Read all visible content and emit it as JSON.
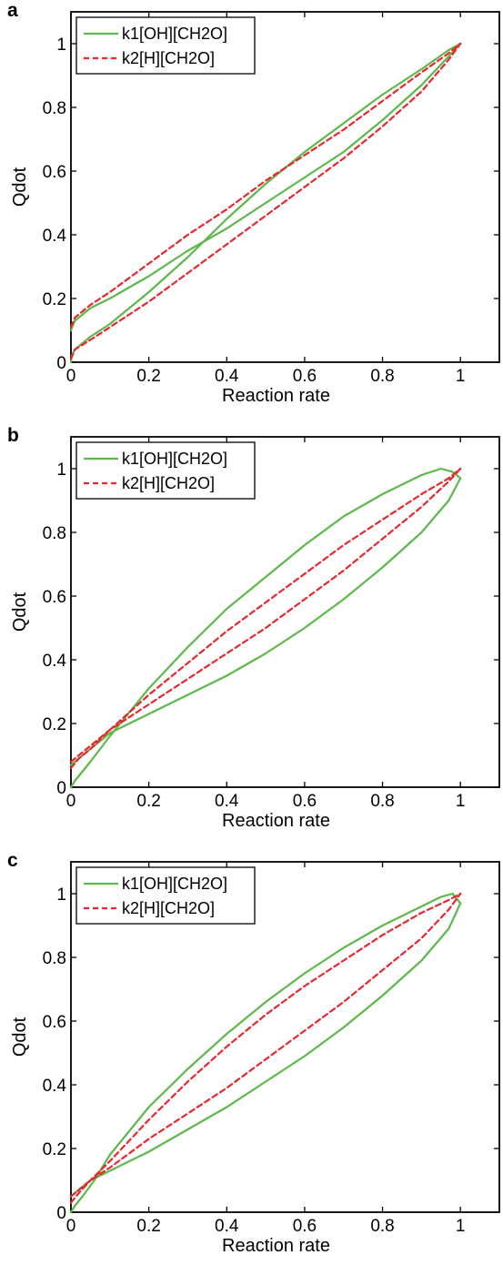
{
  "chart_data": [
    {
      "type": "line",
      "panel_label": "a",
      "xlabel": "Reaction rate",
      "ylabel": "Qdot",
      "xlim": [
        0,
        1.1
      ],
      "ylim": [
        0,
        1.1
      ],
      "xticks": [
        "0",
        "0.2",
        "0.4",
        "0.6",
        "0.8",
        "1"
      ],
      "yticks": [
        "0",
        "0.2",
        "0.4",
        "0.6",
        "0.8",
        "1"
      ],
      "legend_position": "top-left",
      "series": [
        {
          "name": "k1[OH][CH2O]",
          "color": "#5cb84a",
          "dash": "solid",
          "segments": [
            [
              [
                0,
                0
              ],
              [
                0.002,
                0.02
              ],
              [
                0.01,
                0.04
              ],
              [
                0.05,
                0.08
              ],
              [
                0.1,
                0.12
              ],
              [
                0.2,
                0.22
              ],
              [
                0.3,
                0.33
              ],
              [
                0.4,
                0.45
              ],
              [
                0.5,
                0.56
              ],
              [
                0.6,
                0.66
              ],
              [
                0.7,
                0.75
              ],
              [
                0.8,
                0.84
              ],
              [
                0.9,
                0.92
              ],
              [
                0.97,
                0.98
              ],
              [
                1,
                1
              ]
            ],
            [
              [
                0,
                0.1
              ],
              [
                0.01,
                0.13
              ],
              [
                0.05,
                0.17
              ],
              [
                0.1,
                0.2
              ],
              [
                0.2,
                0.27
              ],
              [
                0.3,
                0.35
              ],
              [
                0.4,
                0.42
              ],
              [
                0.5,
                0.5
              ],
              [
                0.6,
                0.58
              ],
              [
                0.7,
                0.66
              ],
              [
                0.8,
                0.76
              ],
              [
                0.9,
                0.87
              ],
              [
                0.97,
                0.96
              ],
              [
                1,
                1
              ]
            ]
          ]
        },
        {
          "name": "k2[H][CH2O]",
          "color": "#e8262b",
          "dash": "dashed",
          "segments": [
            [
              [
                0,
                0.01
              ],
              [
                0.01,
                0.04
              ],
              [
                0.05,
                0.07
              ],
              [
                0.1,
                0.11
              ],
              [
                0.2,
                0.19
              ],
              [
                0.3,
                0.28
              ],
              [
                0.4,
                0.37
              ],
              [
                0.5,
                0.46
              ],
              [
                0.6,
                0.55
              ],
              [
                0.7,
                0.64
              ],
              [
                0.8,
                0.74
              ],
              [
                0.9,
                0.85
              ],
              [
                0.97,
                0.95
              ],
              [
                1,
                1
              ]
            ],
            [
              [
                0,
                0.11
              ],
              [
                0.01,
                0.14
              ],
              [
                0.05,
                0.18
              ],
              [
                0.1,
                0.22
              ],
              [
                0.2,
                0.31
              ],
              [
                0.3,
                0.4
              ],
              [
                0.4,
                0.48
              ],
              [
                0.5,
                0.57
              ],
              [
                0.6,
                0.65
              ],
              [
                0.7,
                0.73
              ],
              [
                0.8,
                0.82
              ],
              [
                0.9,
                0.91
              ],
              [
                0.97,
                0.97
              ],
              [
                1,
                1
              ]
            ]
          ]
        }
      ]
    },
    {
      "type": "line",
      "panel_label": "b",
      "xlabel": "Reaction rate",
      "ylabel": "Qdot",
      "xlim": [
        0,
        1.1
      ],
      "ylim": [
        0,
        1.1
      ],
      "xticks": [
        "0",
        "0.2",
        "0.4",
        "0.6",
        "0.8",
        "1"
      ],
      "yticks": [
        "0",
        "0.2",
        "0.4",
        "0.6",
        "0.8",
        "1"
      ],
      "legend_position": "top-left",
      "series": [
        {
          "name": "k1[OH][CH2O]",
          "color": "#5cb84a",
          "dash": "solid",
          "segments": [
            [
              [
                0,
                0
              ],
              [
                0.01,
                0.02
              ],
              [
                0.05,
                0.08
              ],
              [
                0.1,
                0.16
              ],
              [
                0.2,
                0.31
              ],
              [
                0.3,
                0.44
              ],
              [
                0.4,
                0.56
              ],
              [
                0.5,
                0.66
              ],
              [
                0.6,
                0.76
              ],
              [
                0.7,
                0.85
              ],
              [
                0.8,
                0.92
              ],
              [
                0.9,
                0.98
              ],
              [
                0.95,
                1.0
              ],
              [
                0.98,
                0.99
              ],
              [
                1,
                0.97
              ]
            ],
            [
              [
                0,
                0.07
              ],
              [
                0.02,
                0.09
              ],
              [
                0.05,
                0.12
              ],
              [
                0.1,
                0.17
              ],
              [
                0.2,
                0.23
              ],
              [
                0.3,
                0.29
              ],
              [
                0.4,
                0.35
              ],
              [
                0.5,
                0.42
              ],
              [
                0.6,
                0.5
              ],
              [
                0.7,
                0.59
              ],
              [
                0.8,
                0.69
              ],
              [
                0.9,
                0.8
              ],
              [
                0.97,
                0.9
              ],
              [
                1,
                0.97
              ]
            ]
          ]
        },
        {
          "name": "k2[H][CH2O]",
          "color": "#e8262b",
          "dash": "dashed",
          "segments": [
            [
              [
                0,
                0.06
              ],
              [
                0.02,
                0.09
              ],
              [
                0.05,
                0.12
              ],
              [
                0.1,
                0.18
              ],
              [
                0.2,
                0.29
              ],
              [
                0.3,
                0.39
              ],
              [
                0.4,
                0.49
              ],
              [
                0.5,
                0.58
              ],
              [
                0.6,
                0.67
              ],
              [
                0.7,
                0.76
              ],
              [
                0.8,
                0.84
              ],
              [
                0.9,
                0.92
              ],
              [
                0.97,
                0.97
              ],
              [
                1,
                1
              ]
            ],
            [
              [
                0,
                0.08
              ],
              [
                0.02,
                0.1
              ],
              [
                0.05,
                0.13
              ],
              [
                0.1,
                0.18
              ],
              [
                0.2,
                0.26
              ],
              [
                0.3,
                0.34
              ],
              [
                0.4,
                0.42
              ],
              [
                0.5,
                0.5
              ],
              [
                0.6,
                0.59
              ],
              [
                0.7,
                0.68
              ],
              [
                0.8,
                0.78
              ],
              [
                0.9,
                0.88
              ],
              [
                0.97,
                0.96
              ],
              [
                1,
                1
              ]
            ]
          ]
        }
      ]
    },
    {
      "type": "line",
      "panel_label": "c",
      "xlabel": "Reaction rate",
      "ylabel": "Qdot",
      "xlim": [
        0,
        1.1
      ],
      "ylim": [
        0,
        1.1
      ],
      "xticks": [
        "0",
        "0.2",
        "0.4",
        "0.6",
        "0.8",
        "1"
      ],
      "yticks": [
        "0",
        "0.2",
        "0.4",
        "0.6",
        "0.8",
        "1"
      ],
      "legend_position": "top-left",
      "series": [
        {
          "name": "k1[OH][CH2O]",
          "color": "#5cb84a",
          "dash": "solid",
          "segments": [
            [
              [
                0,
                0
              ],
              [
                0.01,
                0.02
              ],
              [
                0.03,
                0.05
              ],
              [
                0.06,
                0.1
              ],
              [
                0.1,
                0.18
              ],
              [
                0.2,
                0.33
              ],
              [
                0.3,
                0.45
              ],
              [
                0.4,
                0.56
              ],
              [
                0.5,
                0.66
              ],
              [
                0.6,
                0.75
              ],
              [
                0.7,
                0.83
              ],
              [
                0.8,
                0.9
              ],
              [
                0.9,
                0.96
              ],
              [
                0.95,
                0.99
              ],
              [
                0.98,
                1.0
              ],
              [
                1,
                0.97
              ]
            ],
            [
              [
                0,
                0.05
              ],
              [
                0.02,
                0.07
              ],
              [
                0.05,
                0.1
              ],
              [
                0.1,
                0.13
              ],
              [
                0.2,
                0.19
              ],
              [
                0.3,
                0.26
              ],
              [
                0.4,
                0.33
              ],
              [
                0.5,
                0.41
              ],
              [
                0.6,
                0.49
              ],
              [
                0.7,
                0.58
              ],
              [
                0.8,
                0.68
              ],
              [
                0.9,
                0.79
              ],
              [
                0.97,
                0.89
              ],
              [
                1,
                0.97
              ]
            ]
          ]
        },
        {
          "name": "k2[H][CH2O]",
          "color": "#e8262b",
          "dash": "dashed",
          "segments": [
            [
              [
                0,
                0.03
              ],
              [
                0.02,
                0.06
              ],
              [
                0.05,
                0.1
              ],
              [
                0.1,
                0.16
              ],
              [
                0.2,
                0.29
              ],
              [
                0.3,
                0.41
              ],
              [
                0.4,
                0.52
              ],
              [
                0.5,
                0.62
              ],
              [
                0.6,
                0.71
              ],
              [
                0.7,
                0.79
              ],
              [
                0.8,
                0.87
              ],
              [
                0.9,
                0.94
              ],
              [
                0.97,
                0.98
              ],
              [
                1,
                1
              ]
            ],
            [
              [
                0,
                0.05
              ],
              [
                0.02,
                0.07
              ],
              [
                0.05,
                0.1
              ],
              [
                0.1,
                0.14
              ],
              [
                0.2,
                0.23
              ],
              [
                0.3,
                0.31
              ],
              [
                0.4,
                0.39
              ],
              [
                0.5,
                0.48
              ],
              [
                0.6,
                0.57
              ],
              [
                0.7,
                0.66
              ],
              [
                0.8,
                0.76
              ],
              [
                0.9,
                0.86
              ],
              [
                0.97,
                0.95
              ],
              [
                1,
                1
              ]
            ]
          ]
        }
      ]
    }
  ]
}
